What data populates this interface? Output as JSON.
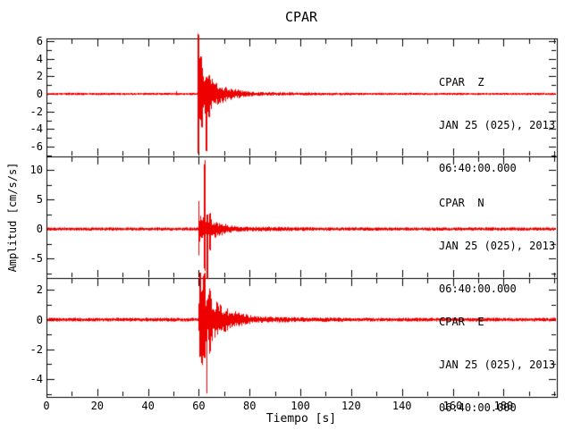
{
  "chart_data": {
    "type": "line",
    "title": "CPAR",
    "xlabel": "Tiempo [s]",
    "ylabel": "Amplitud [cm/s/s]",
    "xlim": [
      0,
      201
    ],
    "x_major_ticks": [
      0,
      20,
      40,
      60,
      80,
      100,
      120,
      140,
      160,
      180
    ],
    "x_minor_step": 10,
    "grid": false,
    "legend": "none",
    "trace_color": "#ee0000",
    "axis_color": "#000000",
    "background_color": "#ffffff",
    "event_onset_s": 60,
    "coda_end_s": 100,
    "panels": [
      {
        "component": "Z",
        "annotation": [
          "CPAR  Z",
          "JAN 25 (025), 2013",
          "06:40:00.000"
        ],
        "ylim": [
          -7.1,
          6.3
        ],
        "y_major_ticks": [
          6,
          4,
          2,
          0,
          -2,
          -4,
          -6
        ],
        "y_minor_step": 1,
        "peak_amplitude": 6.9,
        "trough_amplitude": -7.3,
        "noise_amp": 0.14,
        "onset_s": 59.6,
        "burst_len_s": 4,
        "burst_amp": 2.3,
        "coda_amp": 2.0,
        "coda_tau_s": 8,
        "tail_amp": 0.22,
        "seed": 7,
        "spikes": [
          {
            "t": 59.7,
            "w": 0.25,
            "hi": 6.9,
            "lo": -6.8
          },
          {
            "t": 60.4,
            "w": 0.5,
            "hi": 4.6,
            "lo": -3.2
          },
          {
            "t": 61.0,
            "w": 0.4,
            "hi": 3.4,
            "lo": -4.4
          },
          {
            "t": 62.9,
            "w": 0.3,
            "hi": 1.8,
            "lo": -7.3
          },
          {
            "t": 64.0,
            "w": 0.3,
            "hi": 2.4,
            "lo": -3.0
          }
        ]
      },
      {
        "component": "N",
        "annotation": [
          "CPAR  N",
          "JAN 25 (025), 2013",
          "06:40:00.000"
        ],
        "ylim": [
          -8.3,
          12.3
        ],
        "y_major_ticks": [
          10,
          5,
          0,
          -5
        ],
        "y_minor_step": 2.5,
        "peak_amplitude": 12.8,
        "trough_amplitude": -8.6,
        "noise_amp": 0.3,
        "onset_s": 59.6,
        "burst_len_s": 4.5,
        "burst_amp": 2.4,
        "coda_amp": 2.0,
        "coda_tau_s": 7,
        "tail_amp": 0.38,
        "seed": 11,
        "spikes": [
          {
            "t": 59.8,
            "w": 0.3,
            "hi": 4.8,
            "lo": -4.5
          },
          {
            "t": 62.1,
            "w": 0.25,
            "hi": 12.8,
            "lo": -7.8
          },
          {
            "t": 63.1,
            "w": 0.3,
            "hi": 2.5,
            "lo": -8.6
          },
          {
            "t": 64.2,
            "w": 0.25,
            "hi": 3.0,
            "lo": -4.0
          }
        ]
      },
      {
        "component": "E",
        "annotation": [
          "CPAR  E",
          "JAN 25 (025), 2013",
          "06:40:00.000"
        ],
        "ylim": [
          -5.2,
          2.8
        ],
        "y_major_ticks": [
          2,
          0,
          -2,
          -4
        ],
        "y_minor_step": 1,
        "peak_amplitude": 3.4,
        "trough_amplitude": -5.8,
        "noise_amp": 0.13,
        "onset_s": 59.8,
        "burst_len_s": 5,
        "burst_amp": 1.85,
        "coda_amp": 1.5,
        "coda_tau_s": 9,
        "tail_amp": 0.2,
        "seed": 23,
        "spikes": [
          {
            "t": 60.3,
            "w": 0.35,
            "hi": 3.4,
            "lo": -2.6
          },
          {
            "t": 61.0,
            "w": 0.3,
            "hi": 2.0,
            "lo": -3.1
          },
          {
            "t": 62.0,
            "w": 0.45,
            "hi": 3.4,
            "lo": -2.8
          },
          {
            "t": 63.1,
            "w": 0.25,
            "hi": 1.5,
            "lo": -5.8
          },
          {
            "t": 64.3,
            "w": 0.3,
            "hi": 2.2,
            "lo": -2.4
          }
        ]
      }
    ]
  }
}
